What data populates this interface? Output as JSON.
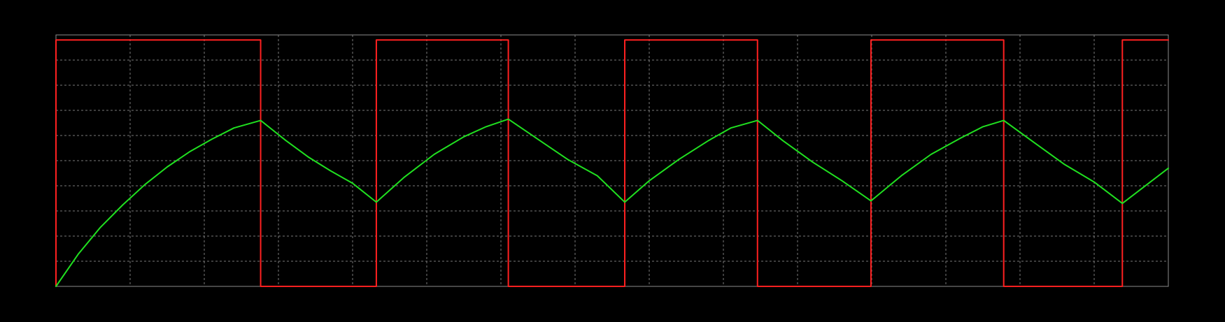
{
  "chart_data": {
    "type": "line",
    "title": "",
    "xlabel": "",
    "ylabel": "",
    "xlim": [
      0,
      15
    ],
    "ylim": [
      0,
      10
    ],
    "grid": true,
    "grid_divisions": {
      "x": 15,
      "y": 10
    },
    "background_color": "#000000",
    "grid_color": "#7a7a7a",
    "series": [
      {
        "color": "#ff2020",
        "x": [
          0,
          0,
          2.76,
          2.76,
          4.32,
          4.32,
          6.1,
          6.1,
          7.67,
          7.67,
          9.46,
          9.46,
          10.99,
          10.99,
          12.78,
          12.78,
          14.38,
          14.38,
          15
        ],
        "y": [
          0,
          9.8,
          9.8,
          0,
          0,
          9.8,
          9.8,
          0,
          0,
          9.8,
          9.8,
          0,
          0,
          9.8,
          9.8,
          0,
          0,
          9.8,
          9.8
        ]
      },
      {
        "color": "#20e020",
        "x": [
          0,
          0.3,
          0.6,
          0.9,
          1.2,
          1.5,
          1.8,
          2.1,
          2.4,
          2.76,
          3.1,
          3.4,
          3.7,
          4.0,
          4.32,
          4.7,
          5.1,
          5.5,
          5.8,
          6.1,
          6.5,
          6.9,
          7.3,
          7.67,
          8.0,
          8.4,
          8.8,
          9.1,
          9.46,
          9.8,
          10.2,
          10.6,
          10.99,
          11.4,
          11.8,
          12.2,
          12.5,
          12.78,
          13.2,
          13.6,
          14.0,
          14.38,
          15.0
        ],
        "y": [
          0,
          1.28,
          2.35,
          3.24,
          4.05,
          4.75,
          5.35,
          5.85,
          6.3,
          6.6,
          5.8,
          5.15,
          4.6,
          4.1,
          3.35,
          4.35,
          5.25,
          5.95,
          6.35,
          6.65,
          5.85,
          5.05,
          4.4,
          3.35,
          4.2,
          5.05,
          5.8,
          6.3,
          6.6,
          5.8,
          4.95,
          4.2,
          3.4,
          4.4,
          5.25,
          5.9,
          6.35,
          6.6,
          5.7,
          4.85,
          4.15,
          3.3,
          4.7
        ]
      }
    ]
  }
}
